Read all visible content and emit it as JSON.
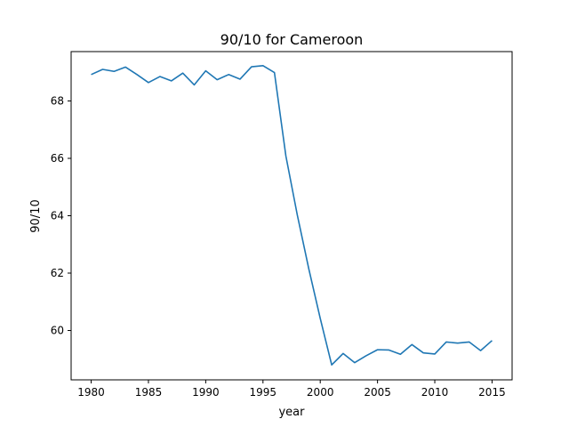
{
  "chart_data": {
    "type": "line",
    "title": "90/10 for Cameroon",
    "xlabel": "year",
    "ylabel": "90/10",
    "xlim": [
      1978.25,
      2016.75
    ],
    "ylim": [
      58.28,
      69.72
    ],
    "xticks": [
      1980,
      1985,
      1990,
      1995,
      2000,
      2005,
      2010,
      2015
    ],
    "yticks": [
      60,
      62,
      64,
      66,
      68
    ],
    "grid": false,
    "legend": "none",
    "line_color": "#1f77b4",
    "series": [
      {
        "x": [
          1980,
          1981,
          1982,
          1983,
          1984,
          1985,
          1986,
          1987,
          1988,
          1989,
          1990,
          1991,
          1992,
          1993,
          1994,
          1995,
          1996,
          1997,
          1998,
          1999,
          2000,
          2001,
          2002,
          2003,
          2004,
          2005,
          2006,
          2007,
          2008,
          2009,
          2010,
          2011,
          2012,
          2013,
          2014,
          2015
        ],
        "y": [
          68.92,
          69.1,
          69.03,
          69.18,
          68.92,
          68.64,
          68.85,
          68.7,
          68.97,
          68.56,
          69.05,
          68.74,
          68.92,
          68.76,
          69.19,
          69.23,
          68.99,
          66.08,
          64.02,
          62.15,
          60.42,
          58.8,
          59.2,
          58.88,
          59.12,
          59.33,
          59.32,
          59.17,
          59.51,
          59.22,
          59.18,
          59.6,
          59.56,
          59.6,
          59.3,
          59.65
        ]
      }
    ]
  }
}
